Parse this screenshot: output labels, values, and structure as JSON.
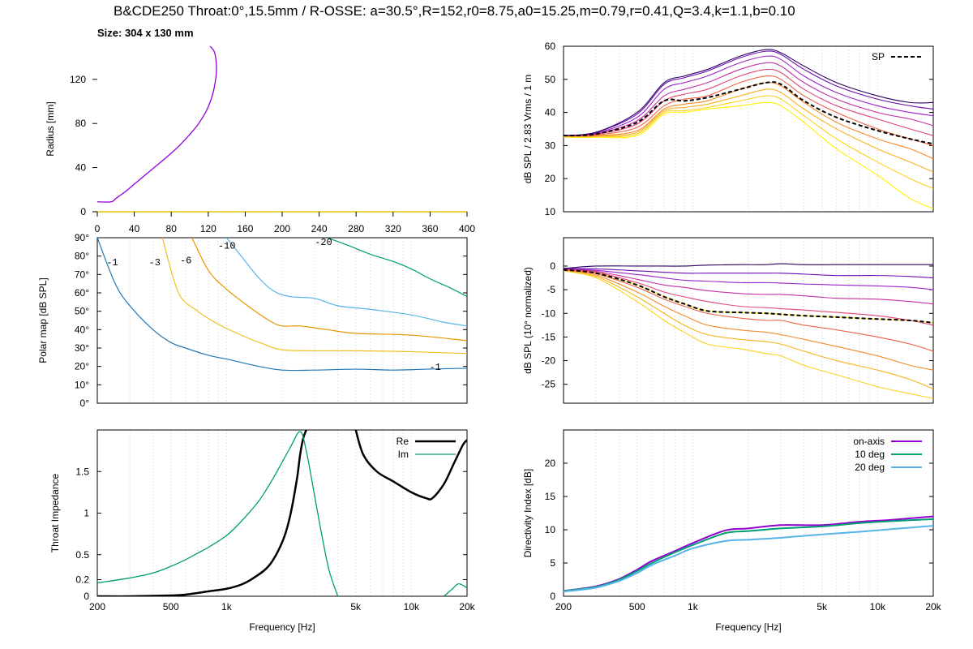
{
  "title": "B&CDE250 Throat:0°,15.5mm / R-OSSE: a=30.5°,R=152,r0=8.75,a0=15.25,m=0.79,r=0.41,Q=3.4,k=1.1,b=0.10",
  "subtitle": "Size: 304 x 130 mm",
  "chart_data": [
    {
      "id": "profile",
      "type": "line",
      "xlabel": "",
      "ylabel": "Radius [mm]",
      "xlim": [
        0,
        400
      ],
      "ylim": [
        0,
        150
      ],
      "x_ticks": [
        0,
        40,
        80,
        120,
        160,
        200,
        240,
        280,
        320,
        360,
        400
      ],
      "y_ticks": [
        0,
        40,
        80,
        120
      ],
      "colors": {
        "profile": "#9400d3",
        "baseline": "#e5c400"
      },
      "series": [
        {
          "x": [
            0,
            15,
            20,
            30,
            40,
            50,
            60,
            70,
            80,
            90,
            100,
            108,
            115,
            120,
            125,
            128,
            129,
            128,
            126,
            122
          ],
          "y": [
            9,
            9,
            12,
            18,
            25,
            32,
            39,
            46,
            53,
            61,
            70,
            78,
            87,
            95,
            107,
            120,
            130,
            140,
            146,
            150
          ]
        }
      ]
    },
    {
      "id": "polar_map",
      "type": "line",
      "xscale": "log",
      "xlabel": "",
      "ylabel": "Polar map [dB SPL]",
      "xlim": [
        200,
        20000
      ],
      "ylim": [
        0,
        90
      ],
      "y_ticks": [
        0,
        10,
        20,
        30,
        40,
        50,
        60,
        70,
        80,
        90
      ],
      "y_tick_labels": [
        "0°",
        "10°",
        "20°",
        "30°",
        "40°",
        "50°",
        "60°",
        "70°",
        "80°",
        "90°"
      ],
      "contour_labels": [
        "-1",
        "-3",
        "-6",
        "-10",
        "-20",
        "-1"
      ],
      "series": [
        {
          "contour": "-1",
          "color": "#1f77b4",
          "x": [
            200,
            250,
            300,
            400,
            500,
            600,
            800,
            1000,
            1500,
            2000,
            3000,
            5000,
            8000,
            12000,
            20000
          ],
          "y": [
            90,
            65,
            53,
            40,
            33,
            30,
            26,
            24,
            20,
            18,
            18,
            18.5,
            18,
            18.5,
            19
          ]
        },
        {
          "contour": "-3",
          "color": "#f0c020",
          "x": [
            450,
            550,
            700,
            900,
            1200,
            1600,
            2000,
            3000,
            5000,
            10000,
            20000
          ],
          "y": [
            90,
            60,
            50,
            43,
            37,
            32,
            29,
            28.5,
            28.5,
            28,
            27
          ]
        },
        {
          "contour": "-6",
          "color": "#e69500",
          "x": [
            650,
            800,
            1000,
            1300,
            1700,
            2000,
            2500,
            3500,
            5000,
            10000,
            20000
          ],
          "y": [
            90,
            72,
            62,
            53,
            45,
            42,
            42,
            40,
            38,
            37,
            34
          ]
        },
        {
          "contour": "-10",
          "color": "#56b4e9",
          "x": [
            1000,
            1200,
            1500,
            1800,
            2200,
            3000,
            4000,
            6000,
            10000,
            15000,
            20000
          ],
          "y": [
            90,
            80,
            68,
            61,
            58,
            57,
            53,
            51,
            48,
            44,
            42
          ]
        },
        {
          "contour": "-20",
          "color": "#009e73",
          "x": [
            3500,
            4500,
            6000,
            8000,
            10000,
            13000,
            16000,
            20000
          ],
          "y": [
            90,
            86,
            81,
            77,
            73,
            67,
            63,
            58
          ]
        }
      ]
    },
    {
      "id": "impedance",
      "type": "line",
      "xscale": "log",
      "xlabel": "Frequency [Hz]",
      "ylabel": "Throat Impedance",
      "xlim": [
        200,
        20000
      ],
      "ylim": [
        0,
        2
      ],
      "x_ticks": [
        200,
        500,
        1000,
        5000,
        10000,
        20000
      ],
      "x_tick_labels": [
        "200",
        "500",
        "1k",
        "5k",
        "10k",
        "20k"
      ],
      "y_ticks": [
        0,
        0.2,
        0.5,
        1,
        1.5
      ],
      "y_tick_labels": [
        "0",
        "0.2",
        "0.5",
        "1",
        "1.5"
      ],
      "legend": "top-right",
      "series": [
        {
          "name": "Re",
          "color": "#000000",
          "width": 2.5,
          "x": [
            200,
            300,
            500,
            600,
            700,
            800,
            1000,
            1200,
            1400,
            1700,
            2000,
            2200,
            2400,
            2500,
            2600,
            2700
          ],
          "y": [
            0,
            0,
            0.01,
            0.02,
            0.04,
            0.06,
            0.09,
            0.14,
            0.22,
            0.37,
            0.65,
            0.95,
            1.4,
            1.7,
            1.9,
            2.0
          ]
        },
        {
          "name": "Re_hf",
          "color": "#000000",
          "width": 2.5,
          "x": [
            5000,
            5500,
            6500,
            8000,
            10000,
            12000,
            13000,
            15000,
            17000,
            19000,
            20000
          ],
          "y": [
            2.0,
            1.7,
            1.5,
            1.38,
            1.25,
            1.18,
            1.18,
            1.35,
            1.6,
            1.82,
            1.88
          ]
        },
        {
          "name": "Im",
          "color": "#009e73",
          "width": 1.3,
          "x": [
            200,
            300,
            400,
            500,
            600,
            700,
            800,
            1000,
            1200,
            1500,
            1800,
            2200,
            2500,
            2700,
            3000,
            3300,
            3600,
            4000
          ],
          "y": [
            0.16,
            0.22,
            0.28,
            0.36,
            0.44,
            0.52,
            0.59,
            0.73,
            0.9,
            1.15,
            1.43,
            1.78,
            1.98,
            1.75,
            1.2,
            0.7,
            0.3,
            0
          ]
        },
        {
          "name": "Im_hf",
          "color": "#009e73",
          "width": 1.3,
          "x": [
            15000,
            16500,
            18000,
            20000
          ],
          "y": [
            0,
            0.08,
            0.15,
            0.1
          ]
        }
      ]
    },
    {
      "id": "spl",
      "type": "line",
      "xscale": "log",
      "xlabel": "",
      "ylabel": "dB SPL / 2.83 Vrms / 1 m",
      "xlim": [
        200,
        20000
      ],
      "ylim": [
        10,
        60
      ],
      "y_ticks": [
        10,
        20,
        30,
        40,
        50,
        60
      ],
      "legend": "top-right",
      "legend_entries": [
        {
          "name": "SP",
          "color": "#000000",
          "dash": "dashed"
        }
      ],
      "x": [
        200,
        300,
        500,
        700,
        900,
        1200,
        1800,
        2500,
        3000,
        4000,
        6000,
        10000,
        15000,
        20000
      ],
      "series": [
        {
          "name": "0°",
          "values": [
            33,
            34,
            40,
            49,
            51,
            53,
            57,
            59,
            58,
            54,
            49,
            45,
            43,
            43
          ]
        },
        {
          "name": "10°",
          "values": [
            33,
            34,
            39.5,
            48.5,
            50.5,
            52.5,
            56.5,
            58.5,
            57.5,
            53,
            48,
            44,
            42,
            41
          ]
        },
        {
          "name": "20°",
          "values": [
            33,
            33.8,
            38.5,
            47,
            49,
            51,
            55,
            57,
            56,
            51,
            46,
            42,
            40,
            39
          ]
        },
        {
          "name": "30°",
          "values": [
            33,
            33.6,
            37.5,
            45,
            47,
            49,
            53,
            55,
            54,
            49,
            44,
            40,
            38,
            36
          ]
        },
        {
          "name": "40°",
          "values": [
            33,
            33.4,
            36.5,
            43.5,
            45.5,
            47,
            51,
            53,
            52,
            47,
            42,
            38,
            35,
            33
          ]
        },
        {
          "name": "50°",
          "values": [
            33,
            33.2,
            35.5,
            42,
            44,
            45,
            49,
            51,
            50,
            45,
            40,
            35,
            32,
            30
          ]
        },
        {
          "name": "60°",
          "values": [
            33,
            33,
            34.5,
            41,
            42.5,
            43.5,
            47,
            49,
            48,
            43,
            37,
            32,
            29,
            26
          ]
        },
        {
          "name": "70°",
          "values": [
            32.8,
            32.8,
            34,
            40.5,
            41.5,
            42.5,
            45,
            47,
            46,
            41,
            35,
            29,
            25,
            22
          ]
        },
        {
          "name": "80°",
          "values": [
            32.6,
            32.6,
            33.5,
            40,
            40.5,
            41.5,
            43.5,
            45,
            44,
            39,
            32,
            25,
            20,
            17
          ]
        },
        {
          "name": "90°",
          "values": [
            32.5,
            32.5,
            33,
            39.5,
            40,
            41,
            42,
            43,
            42,
            37,
            29,
            21,
            14,
            11
          ]
        },
        {
          "name": "SP",
          "values": [
            33,
            33.5,
            37,
            43.5,
            43.5,
            44.5,
            47,
            49,
            48.5,
            43.5,
            38.5,
            34.5,
            32,
            30.5
          ]
        }
      ],
      "palette": [
        "#2b0066",
        "#6a0dad",
        "#9b22c8",
        "#c4309f",
        "#e04577",
        "#ee6246",
        "#f48a2a",
        "#f8b21e",
        "#fbd41e",
        "#fff200"
      ]
    },
    {
      "id": "normalized",
      "type": "line",
      "xscale": "log",
      "xlabel": "",
      "ylabel": "dB SPL (10° normalized)",
      "xlim": [
        200,
        20000
      ],
      "ylim": [
        -29,
        6
      ],
      "y_ticks": [
        -25,
        -20,
        -15,
        -10,
        -5,
        0
      ],
      "x": [
        200,
        300,
        500,
        700,
        900,
        1200,
        1800,
        2500,
        3000,
        4000,
        6000,
        10000,
        15000,
        20000
      ],
      "series": [
        {
          "name": "10°",
          "values": [
            -0.5,
            0,
            0,
            0,
            0,
            0.2,
            0.3,
            0.3,
            0.5,
            0.3,
            0.3,
            0.3,
            0.3,
            0.3
          ]
        },
        {
          "name": "20°",
          "values": [
            -0.5,
            -0.6,
            -1,
            -1.3,
            -1.5,
            -1.5,
            -1.5,
            -1.5,
            -1.5,
            -1.7,
            -2,
            -2,
            -2.2,
            -2.5
          ]
        },
        {
          "name": "30°",
          "values": [
            -0.5,
            -0.9,
            -1.8,
            -2.5,
            -3,
            -3.2,
            -3.5,
            -3.5,
            -3.6,
            -3.8,
            -4,
            -4.2,
            -4.5,
            -5
          ]
        },
        {
          "name": "40°",
          "values": [
            -0.6,
            -1.1,
            -2.8,
            -4,
            -4.5,
            -5.2,
            -5.8,
            -6,
            -6,
            -6.3,
            -6.8,
            -7,
            -7.5,
            -8
          ]
        },
        {
          "name": "50°",
          "values": [
            -0.6,
            -1.3,
            -3.5,
            -5.5,
            -6.5,
            -7.5,
            -8.5,
            -8.8,
            -9,
            -9.3,
            -9.8,
            -10.5,
            -11.5,
            -12.5
          ]
        },
        {
          "name": "60°",
          "values": [
            -0.7,
            -1.6,
            -4.5,
            -7,
            -8.5,
            -10,
            -11,
            -11.5,
            -11.5,
            -12.5,
            -13.5,
            -15,
            -16.5,
            -18
          ]
        },
        {
          "name": "70°",
          "values": [
            -0.8,
            -1.9,
            -5.5,
            -8.5,
            -10.5,
            -12.5,
            -13.5,
            -14,
            -14.5,
            -15.5,
            -17,
            -19,
            -21,
            -22
          ]
        },
        {
          "name": "80°",
          "values": [
            -0.9,
            -2.2,
            -6.5,
            -10,
            -12.5,
            -14.5,
            -15.5,
            -16,
            -16.5,
            -18,
            -20,
            -22,
            -24,
            -26
          ]
        },
        {
          "name": "90°",
          "values": [
            -1,
            -2.5,
            -7.5,
            -11.5,
            -14,
            -16.5,
            -17.5,
            -18.5,
            -19,
            -21,
            -23,
            -25.5,
            -27,
            -28
          ]
        },
        {
          "name": "SP",
          "values": [
            -0.8,
            -1.5,
            -4,
            -6.5,
            -8,
            -9.5,
            -9.8,
            -10,
            -10.2,
            -10.5,
            -10.8,
            -11.2,
            -11.5,
            -12
          ]
        }
      ]
    },
    {
      "id": "di",
      "type": "line",
      "xscale": "log",
      "xlabel": "Frequency [Hz]",
      "ylabel": "Directivity Index [dB]",
      "xlim": [
        200,
        20000
      ],
      "ylim": [
        0,
        25
      ],
      "x_ticks": [
        200,
        500,
        1000,
        5000,
        10000,
        20000
      ],
      "x_tick_labels": [
        "200",
        "500",
        "1k",
        "5k",
        "10k",
        "20k"
      ],
      "y_ticks": [
        0,
        5,
        10,
        15,
        20
      ],
      "legend": "top-right",
      "x": [
        200,
        300,
        400,
        500,
        600,
        800,
        1000,
        1500,
        2000,
        3000,
        5000,
        8000,
        12000,
        20000
      ],
      "series": [
        {
          "name": "on-axis",
          "color": "#9400d3",
          "values": [
            0.8,
            1.5,
            2.6,
            4,
            5.3,
            6.8,
            8,
            9.9,
            10.2,
            10.7,
            10.7,
            11.2,
            11.5,
            12
          ]
        },
        {
          "name": "10 deg",
          "color": "#009e73",
          "values": [
            0.8,
            1.4,
            2.5,
            3.8,
            5,
            6.6,
            7.7,
            9.5,
            9.8,
            10.2,
            10.5,
            11,
            11.3,
            11.6
          ]
        },
        {
          "name": "20 deg",
          "color": "#56b4e9",
          "values": [
            0.7,
            1.3,
            2.3,
            3.5,
            4.7,
            6.1,
            7.2,
            8.3,
            8.5,
            8.8,
            9.3,
            9.7,
            10.1,
            10.6
          ]
        }
      ]
    }
  ]
}
